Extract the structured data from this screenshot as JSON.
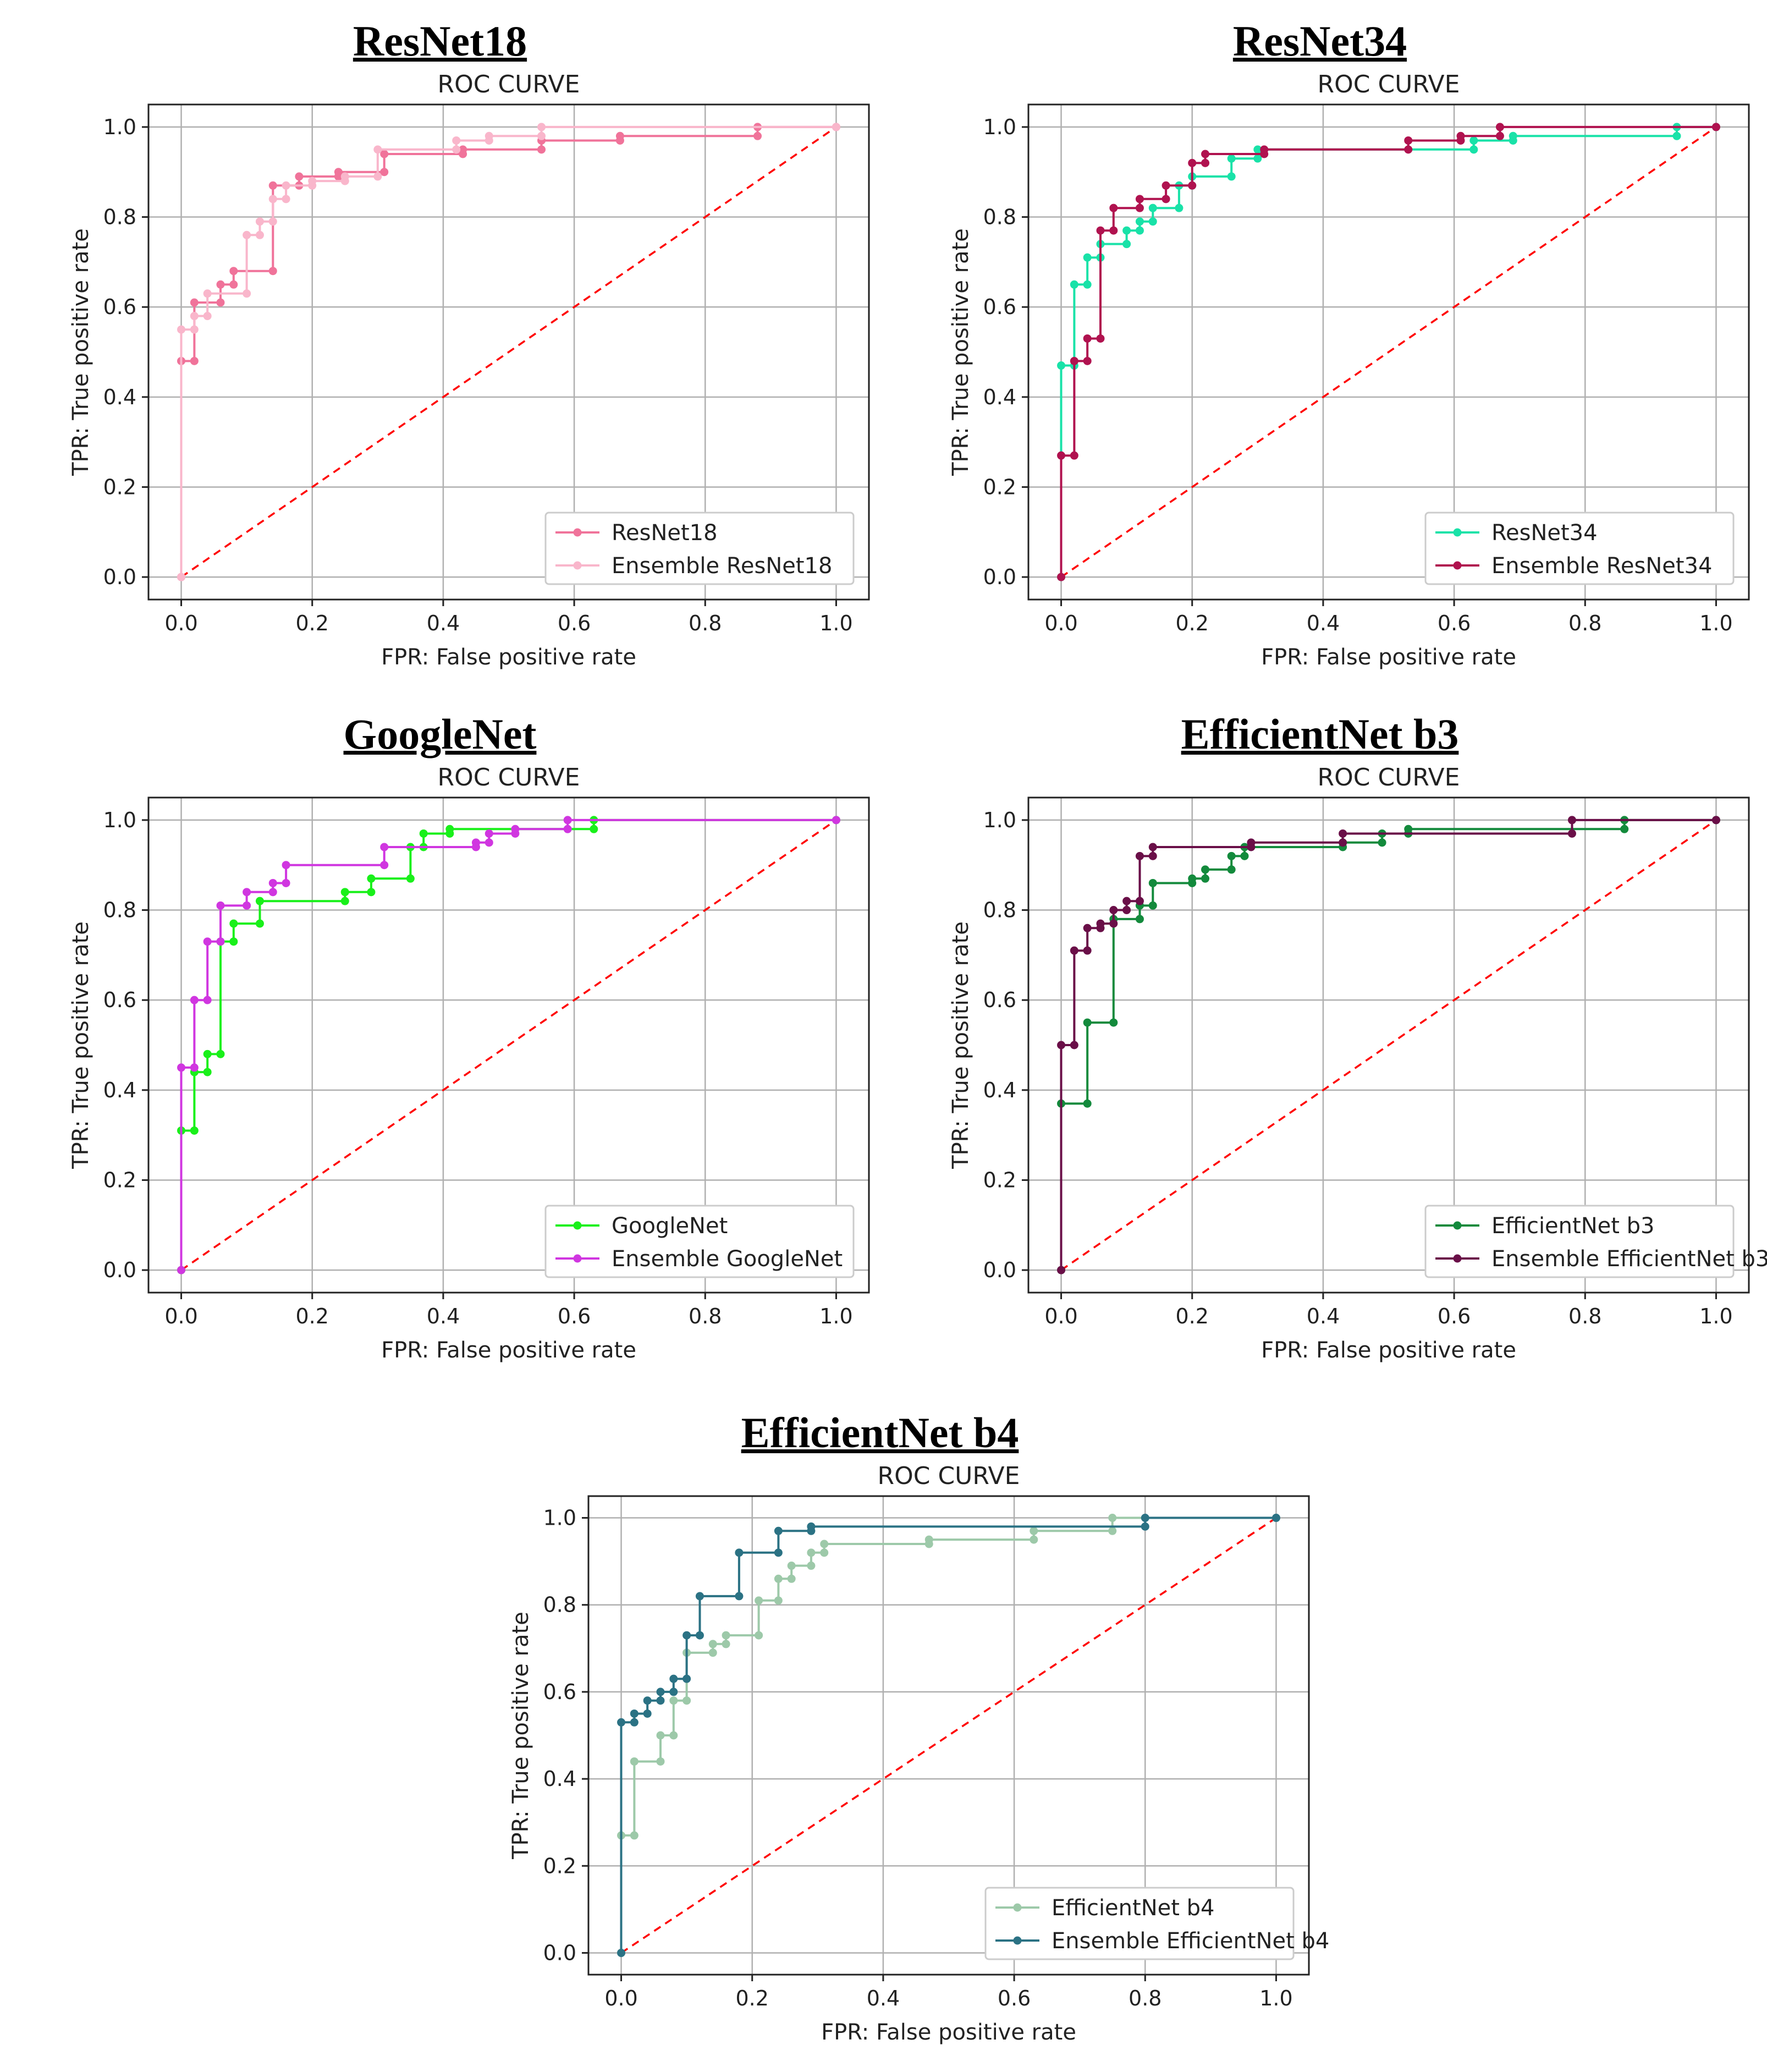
{
  "chart_data": [
    {
      "type": "line",
      "model_title": "ResNet18",
      "title": "ROC CURVE",
      "xlabel": "FPR: False positive rate",
      "ylabel": "TPR: True positive rate",
      "xlim": [
        -0.05,
        1.05
      ],
      "ylim": [
        -0.05,
        1.05
      ],
      "ticks": [
        0.0,
        0.2,
        0.4,
        0.6,
        0.8,
        1.0
      ],
      "tick_labels": [
        "0.0",
        "0.2",
        "0.4",
        "0.6",
        "0.8",
        "1.0"
      ],
      "grid": true,
      "legend_position": "lower right",
      "series": [
        {
          "name": "ResNet18",
          "color": "#f0739a",
          "x": [
            0.0,
            0.0,
            0.02,
            0.02,
            0.06,
            0.06,
            0.08,
            0.08,
            0.14,
            0.14,
            0.18,
            0.18,
            0.24,
            0.24,
            0.31,
            0.31,
            0.43,
            0.43,
            0.55,
            0.55,
            0.67,
            0.67,
            0.88,
            0.88,
            1.0
          ],
          "y": [
            0.0,
            0.48,
            0.48,
            0.61,
            0.61,
            0.65,
            0.65,
            0.68,
            0.68,
            0.87,
            0.87,
            0.89,
            0.89,
            0.9,
            0.9,
            0.94,
            0.94,
            0.95,
            0.95,
            0.97,
            0.97,
            0.98,
            0.98,
            1.0,
            1.0
          ]
        },
        {
          "name": "Ensemble ResNet18",
          "color": "#f9b6cb",
          "x": [
            0.0,
            0.0,
            0.0,
            0.02,
            0.02,
            0.04,
            0.04,
            0.1,
            0.1,
            0.12,
            0.12,
            0.14,
            0.14,
            0.16,
            0.16,
            0.2,
            0.2,
            0.25,
            0.25,
            0.3,
            0.3,
            0.42,
            0.42,
            0.47,
            0.47,
            0.55,
            0.55,
            1.0
          ],
          "y": [
            0.0,
            0.0,
            0.55,
            0.55,
            0.58,
            0.58,
            0.63,
            0.63,
            0.76,
            0.76,
            0.79,
            0.79,
            0.84,
            0.84,
            0.87,
            0.87,
            0.88,
            0.88,
            0.89,
            0.89,
            0.95,
            0.95,
            0.97,
            0.97,
            0.98,
            0.98,
            1.0,
            1.0
          ]
        }
      ]
    },
    {
      "type": "line",
      "model_title": "ResNet34",
      "title": "ROC CURVE",
      "xlabel": "FPR: False positive rate",
      "ylabel": "TPR: True positive rate",
      "xlim": [
        -0.05,
        1.05
      ],
      "ylim": [
        -0.05,
        1.05
      ],
      "ticks": [
        0.0,
        0.2,
        0.4,
        0.6,
        0.8,
        1.0
      ],
      "tick_labels": [
        "0.0",
        "0.2",
        "0.4",
        "0.6",
        "0.8",
        "1.0"
      ],
      "grid": true,
      "legend_position": "lower right",
      "series": [
        {
          "name": "ResNet34",
          "color": "#19e2a8",
          "x": [
            0.0,
            0.0,
            0.02,
            0.02,
            0.04,
            0.04,
            0.06,
            0.06,
            0.1,
            0.1,
            0.12,
            0.12,
            0.14,
            0.14,
            0.18,
            0.18,
            0.2,
            0.2,
            0.26,
            0.26,
            0.3,
            0.3,
            0.63,
            0.63,
            0.69,
            0.69,
            0.94,
            0.94,
            1.0
          ],
          "y": [
            0.0,
            0.47,
            0.47,
            0.65,
            0.65,
            0.71,
            0.71,
            0.74,
            0.74,
            0.77,
            0.77,
            0.79,
            0.79,
            0.82,
            0.82,
            0.87,
            0.87,
            0.89,
            0.89,
            0.93,
            0.93,
            0.95,
            0.95,
            0.97,
            0.97,
            0.98,
            0.98,
            1.0,
            1.0
          ]
        },
        {
          "name": "Ensemble ResNet34",
          "color": "#b0124f",
          "x": [
            0.0,
            0.0,
            0.02,
            0.02,
            0.04,
            0.04,
            0.06,
            0.06,
            0.08,
            0.08,
            0.12,
            0.12,
            0.16,
            0.16,
            0.2,
            0.2,
            0.22,
            0.22,
            0.31,
            0.31,
            0.53,
            0.53,
            0.61,
            0.61,
            0.67,
            0.67,
            1.0
          ],
          "y": [
            0.0,
            0.27,
            0.27,
            0.48,
            0.48,
            0.53,
            0.53,
            0.77,
            0.77,
            0.82,
            0.82,
            0.84,
            0.84,
            0.87,
            0.87,
            0.92,
            0.92,
            0.94,
            0.94,
            0.95,
            0.95,
            0.97,
            0.97,
            0.98,
            0.98,
            1.0,
            1.0
          ]
        }
      ]
    },
    {
      "type": "line",
      "model_title": "GoogleNet",
      "title": "ROC CURVE",
      "xlabel": "FPR: False positive rate",
      "ylabel": "TPR: True positive rate",
      "xlim": [
        -0.05,
        1.05
      ],
      "ylim": [
        -0.05,
        1.05
      ],
      "ticks": [
        0.0,
        0.2,
        0.4,
        0.6,
        0.8,
        1.0
      ],
      "tick_labels": [
        "0.0",
        "0.2",
        "0.4",
        "0.6",
        "0.8",
        "1.0"
      ],
      "grid": true,
      "legend_position": "lower right",
      "series": [
        {
          "name": "GoogleNet",
          "color": "#19f01a",
          "x": [
            0.0,
            0.0,
            0.02,
            0.02,
            0.04,
            0.04,
            0.06,
            0.06,
            0.08,
            0.08,
            0.12,
            0.12,
            0.25,
            0.25,
            0.29,
            0.29,
            0.35,
            0.35,
            0.37,
            0.37,
            0.41,
            0.41,
            0.63,
            0.63,
            1.0
          ],
          "y": [
            0.0,
            0.31,
            0.31,
            0.44,
            0.44,
            0.48,
            0.48,
            0.73,
            0.73,
            0.77,
            0.77,
            0.82,
            0.82,
            0.84,
            0.84,
            0.87,
            0.87,
            0.94,
            0.94,
            0.97,
            0.97,
            0.98,
            0.98,
            1.0,
            1.0
          ]
        },
        {
          "name": "Ensemble GoogleNet",
          "color": "#d036e0",
          "x": [
            0.0,
            0.0,
            0.02,
            0.02,
            0.04,
            0.04,
            0.06,
            0.06,
            0.1,
            0.1,
            0.14,
            0.14,
            0.16,
            0.16,
            0.31,
            0.31,
            0.45,
            0.45,
            0.47,
            0.47,
            0.51,
            0.51,
            0.59,
            0.59,
            1.0
          ],
          "y": [
            0.0,
            0.45,
            0.45,
            0.6,
            0.6,
            0.73,
            0.73,
            0.81,
            0.81,
            0.84,
            0.84,
            0.86,
            0.86,
            0.9,
            0.9,
            0.94,
            0.94,
            0.95,
            0.95,
            0.97,
            0.97,
            0.98,
            0.98,
            1.0,
            1.0
          ]
        }
      ]
    },
    {
      "type": "line",
      "model_title": "EfficientNet b3",
      "title": "ROC CURVE",
      "xlabel": "FPR: False positive rate",
      "ylabel": "TPR: True positive rate",
      "xlim": [
        -0.05,
        1.05
      ],
      "ylim": [
        -0.05,
        1.05
      ],
      "ticks": [
        0.0,
        0.2,
        0.4,
        0.6,
        0.8,
        1.0
      ],
      "tick_labels": [
        "0.0",
        "0.2",
        "0.4",
        "0.6",
        "0.8",
        "1.0"
      ],
      "grid": true,
      "legend_position": "lower right",
      "series": [
        {
          "name": "EfficientNet b3",
          "color": "#138a3c",
          "x": [
            0.0,
            0.0,
            0.04,
            0.04,
            0.08,
            0.08,
            0.12,
            0.12,
            0.14,
            0.14,
            0.2,
            0.2,
            0.22,
            0.22,
            0.26,
            0.26,
            0.28,
            0.28,
            0.43,
            0.43,
            0.49,
            0.49,
            0.53,
            0.53,
            0.86,
            0.86,
            1.0
          ],
          "y": [
            0.0,
            0.37,
            0.37,
            0.55,
            0.55,
            0.78,
            0.78,
            0.81,
            0.81,
            0.86,
            0.86,
            0.87,
            0.87,
            0.89,
            0.89,
            0.92,
            0.92,
            0.94,
            0.94,
            0.95,
            0.95,
            0.97,
            0.97,
            0.98,
            0.98,
            1.0,
            1.0
          ]
        },
        {
          "name": "Ensemble EfficientNet b3",
          "color": "#6a0f48",
          "x": [
            0.0,
            0.0,
            0.02,
            0.02,
            0.04,
            0.04,
            0.06,
            0.06,
            0.08,
            0.08,
            0.1,
            0.1,
            0.12,
            0.12,
            0.14,
            0.14,
            0.29,
            0.29,
            0.43,
            0.43,
            0.78,
            0.78,
            1.0
          ],
          "y": [
            0.0,
            0.5,
            0.5,
            0.71,
            0.71,
            0.76,
            0.76,
            0.77,
            0.77,
            0.8,
            0.8,
            0.82,
            0.82,
            0.92,
            0.92,
            0.94,
            0.94,
            0.95,
            0.95,
            0.97,
            0.97,
            1.0,
            1.0
          ]
        }
      ]
    },
    {
      "type": "line",
      "model_title": "EfficientNet b4",
      "title": "ROC CURVE",
      "xlabel": "FPR: False positive rate",
      "ylabel": "TPR: True positive rate",
      "xlim": [
        -0.05,
        1.05
      ],
      "ylim": [
        -0.05,
        1.05
      ],
      "ticks": [
        0.0,
        0.2,
        0.4,
        0.6,
        0.8,
        1.0
      ],
      "tick_labels": [
        "0.0",
        "0.2",
        "0.4",
        "0.6",
        "0.8",
        "1.0"
      ],
      "grid": true,
      "legend_position": "lower right",
      "series": [
        {
          "name": "EfficientNet b4",
          "color": "#9dc9a9",
          "x": [
            0.0,
            0.0,
            0.02,
            0.02,
            0.06,
            0.06,
            0.08,
            0.08,
            0.1,
            0.1,
            0.14,
            0.14,
            0.16,
            0.16,
            0.21,
            0.21,
            0.24,
            0.24,
            0.26,
            0.26,
            0.29,
            0.29,
            0.31,
            0.31,
            0.47,
            0.47,
            0.63,
            0.63,
            0.75,
            0.75,
            1.0
          ],
          "y": [
            0.0,
            0.27,
            0.27,
            0.44,
            0.44,
            0.5,
            0.5,
            0.58,
            0.58,
            0.69,
            0.69,
            0.71,
            0.71,
            0.73,
            0.73,
            0.81,
            0.81,
            0.86,
            0.86,
            0.89,
            0.89,
            0.92,
            0.92,
            0.94,
            0.94,
            0.95,
            0.95,
            0.97,
            0.97,
            1.0,
            1.0
          ]
        },
        {
          "name": "Ensemble EfficientNet b4",
          "color": "#2b7284",
          "x": [
            0.0,
            0.0,
            0.02,
            0.02,
            0.04,
            0.04,
            0.06,
            0.06,
            0.08,
            0.08,
            0.1,
            0.1,
            0.12,
            0.12,
            0.18,
            0.18,
            0.24,
            0.24,
            0.29,
            0.29,
            0.8,
            0.8,
            1.0
          ],
          "y": [
            0.0,
            0.53,
            0.53,
            0.55,
            0.55,
            0.58,
            0.58,
            0.6,
            0.6,
            0.63,
            0.63,
            0.73,
            0.73,
            0.82,
            0.82,
            0.92,
            0.92,
            0.97,
            0.97,
            0.98,
            0.98,
            1.0,
            1.0
          ]
        }
      ]
    }
  ]
}
